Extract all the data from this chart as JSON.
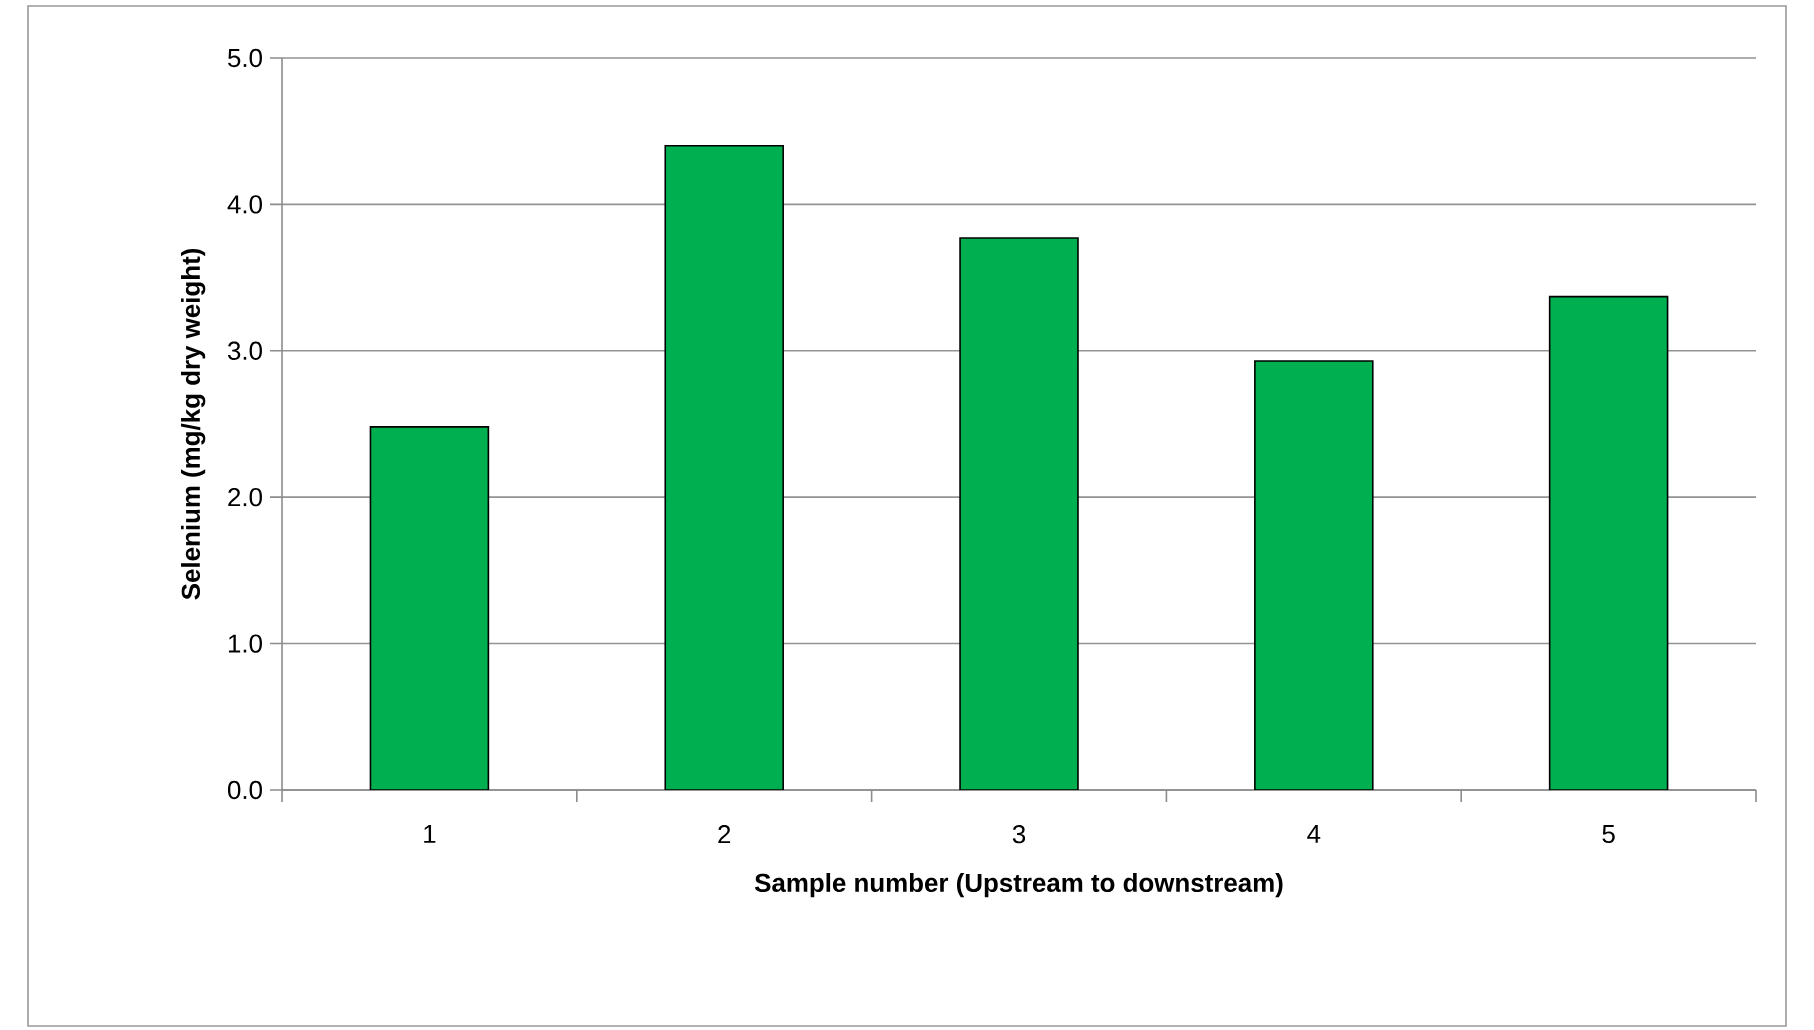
{
  "chart_data": {
    "type": "bar",
    "xlabel": "Sample number (Upstream to downstream)",
    "ylabel": "Selenium (mg/kg dry weight)",
    "categories": [
      "1",
      "2",
      "3",
      "4",
      "5"
    ],
    "values": [
      2.48,
      4.4,
      3.77,
      2.93,
      3.37
    ],
    "color": "#00b050",
    "ylim": [
      0,
      5
    ],
    "yticks": [
      {
        "value": 0,
        "label": "0.0"
      },
      {
        "value": 1,
        "label": "1.0"
      },
      {
        "value": 2,
        "label": "2.0"
      },
      {
        "value": 3,
        "label": "3.0"
      },
      {
        "value": 4,
        "label": "4.0"
      },
      {
        "value": 5,
        "label": "5.0"
      }
    ],
    "grid": "y"
  }
}
